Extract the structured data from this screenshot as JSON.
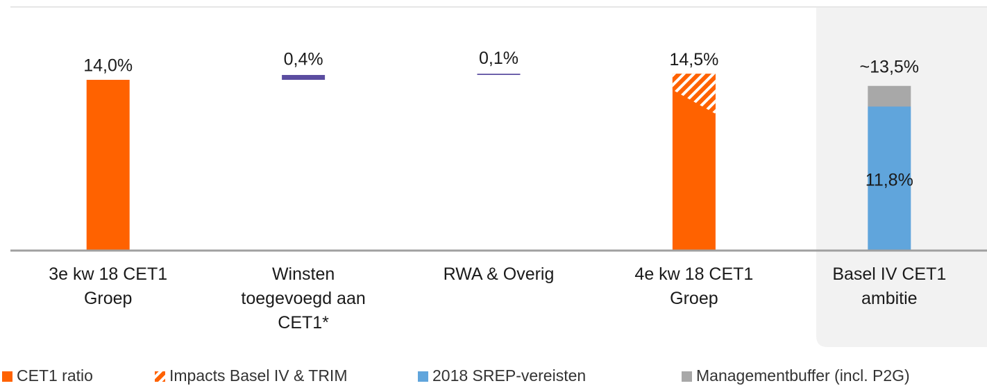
{
  "chart_data": {
    "type": "waterfall",
    "categories": [
      "3e kw 18 CET1 Groep",
      "Winsten toegevoegd aan CET1*",
      "RWA & Overig",
      "4e kw 18 CET1 Groep",
      "Basel IV CET1 ambitie"
    ],
    "series": [
      {
        "name": "CET1 ratio",
        "color": "#ff6200",
        "values": [
          14.0,
          null,
          null,
          14.5,
          null
        ],
        "value_labels": [
          "14,0%",
          null,
          null,
          "14,5%",
          null
        ]
      },
      {
        "name": "Impacts Basel IV & TRIM",
        "color": "#ff6200",
        "pattern": "hatch",
        "values": [
          null,
          null,
          null,
          3.3,
          null
        ]
      },
      {
        "name": "2018 SREP-vereisten",
        "color": "#60a5dc",
        "values": [
          null,
          null,
          null,
          null,
          11.8
        ],
        "value_labels": [
          null,
          null,
          null,
          null,
          "11,8%"
        ]
      },
      {
        "name": "Managementbuffer (incl. P2G)",
        "color": "#a8a8a8",
        "values": [
          null,
          null,
          null,
          null,
          1.7
        ]
      }
    ],
    "increments": {
      "color": "#5b4da0",
      "values": [
        null,
        0.4,
        0.1,
        null,
        null
      ],
      "value_labels": [
        null,
        "0,4%",
        "0,1%",
        null,
        null
      ]
    },
    "total": {
      "value": 13.5,
      "label": "~13,5%"
    },
    "ylim": [
      0,
      20
    ]
  }
}
